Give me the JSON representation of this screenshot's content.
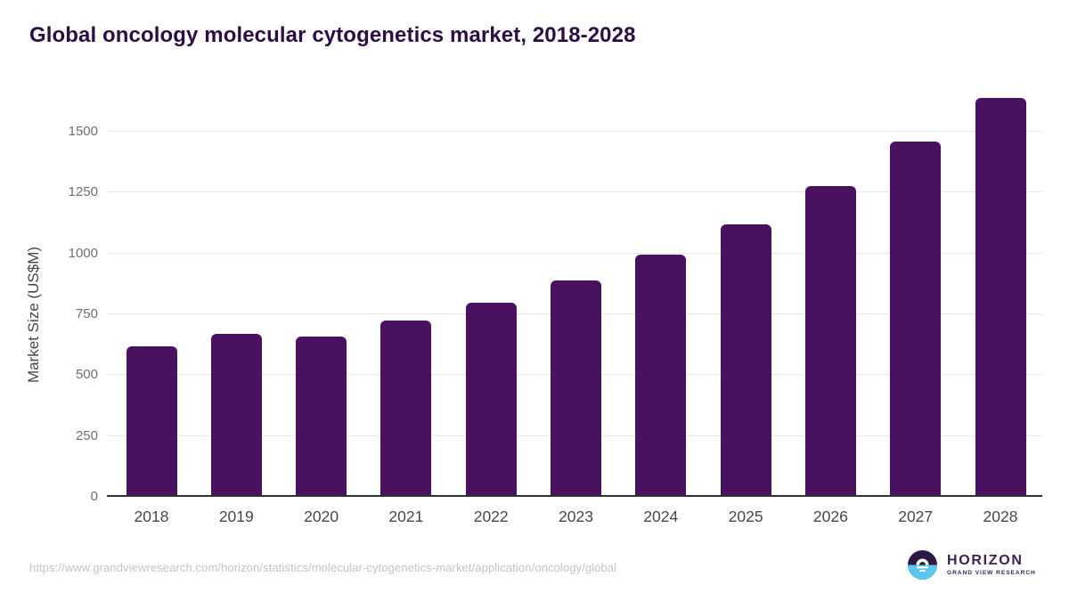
{
  "title": "Global oncology molecular cytogenetics market, 2018-2028",
  "source_url": "https://www.grandviewresearch.com/horizon/statistics/molecular-cytogenetics-market/application/oncology/global",
  "logo": {
    "brand": "HORIZON",
    "sub": "GRAND VIEW RESEARCH"
  },
  "colors": {
    "bar": "#4a1160",
    "title_text": "#2c0d45",
    "gridline": "#e8e8e8",
    "axis_line": "#303030",
    "y_tick_text": "#6e6e6e",
    "x_tick_text": "#474747",
    "url_text": "#c3c3c3",
    "logo_dark_purple": "#2c1a45",
    "logo_sky_blue": "#5cc6f0",
    "logo_text": "#3a2353"
  },
  "chart_data": {
    "type": "bar",
    "title": "Global oncology molecular cytogenetics market, 2018-2028",
    "categories": [
      "2018",
      "2019",
      "2020",
      "2021",
      "2022",
      "2023",
      "2024",
      "2025",
      "2026",
      "2027",
      "2028"
    ],
    "values": [
      615,
      665,
      655,
      720,
      795,
      885,
      990,
      1115,
      1275,
      1455,
      1635
    ],
    "xlabel": "",
    "ylabel": "Market Size (US$M)",
    "ylim": [
      0,
      1700
    ],
    "yticks": [
      0,
      250,
      500,
      750,
      1000,
      1250,
      1500
    ],
    "grid": true,
    "legend": "none",
    "bar_color": "#4a1160"
  }
}
